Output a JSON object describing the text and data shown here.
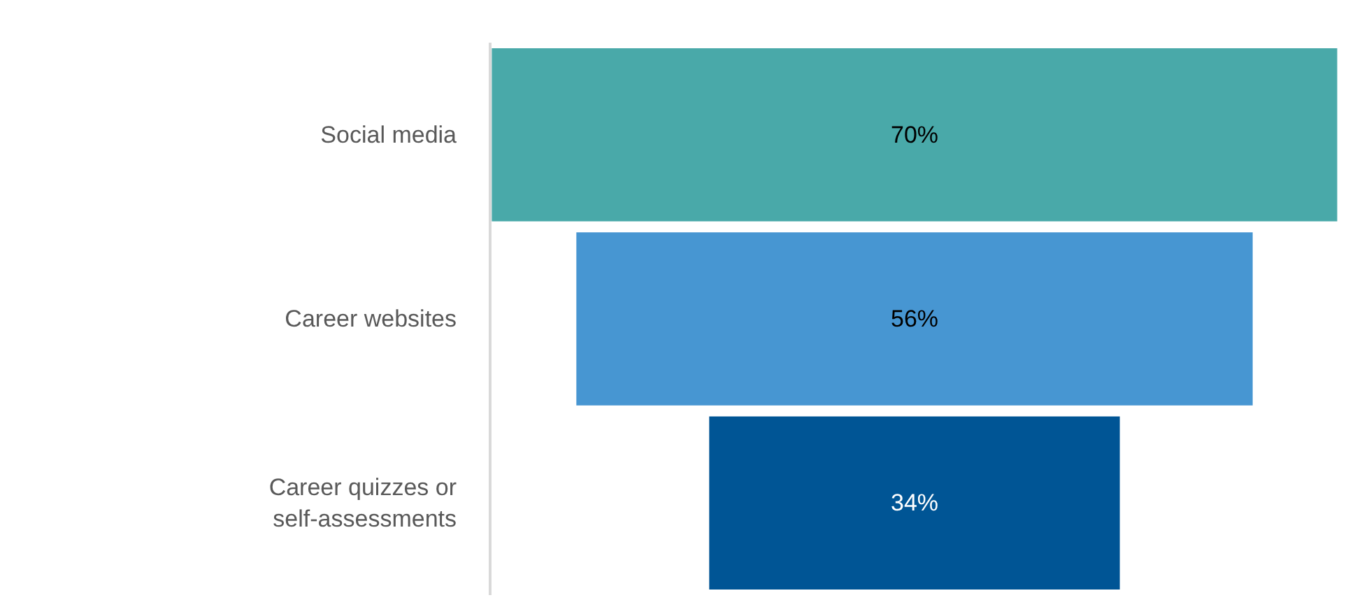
{
  "chart_data": {
    "type": "other",
    "categories": [
      "Social media",
      "Career websites",
      "Career quizzes or self-assessments"
    ],
    "values": [
      70,
      56,
      34
    ],
    "value_labels": [
      "70%",
      "56%",
      "34%"
    ],
    "colors": [
      "#49a9a9",
      "#4796d2",
      "#005595"
    ]
  }
}
